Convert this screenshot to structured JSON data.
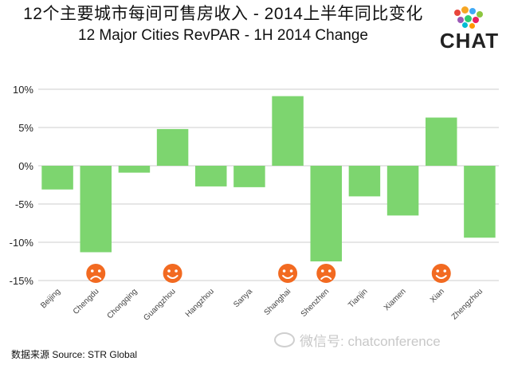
{
  "title": {
    "cn": "12个主要城市每间可售房收入  -  2014上半年同比变化",
    "en": "12 Major Cities RevPAR - 1H 2014 Change"
  },
  "logo": {
    "text": "CHAT"
  },
  "source": "数据来源  Source: STR Global",
  "watermark": "微信号: chatconference",
  "chart_data": {
    "type": "bar",
    "categories": [
      "Beijing",
      "Chengdu",
      "Chongqing",
      "Guangzhou",
      "Hangzhou",
      "Sanya",
      "Shanghai",
      "Shenzhen",
      "Tianjin",
      "Xiamen",
      "Xian",
      "Zhengzhou"
    ],
    "values": [
      -3.1,
      -11.3,
      -0.9,
      4.8,
      -2.7,
      -2.8,
      9.1,
      -12.5,
      -4.0,
      -6.5,
      6.3,
      -9.4
    ],
    "unit": "%",
    "ylim": [
      -15,
      10
    ],
    "yticks": [
      10,
      5,
      0,
      -5,
      -10,
      -15
    ],
    "ytick_labels": [
      "10%",
      "5%",
      "0%",
      "-5%",
      "-10%",
      "-15%"
    ],
    "grid": true,
    "bar_color": "#7dd56f",
    "annotations": [
      {
        "category": "Chengdu",
        "icon": "sad-face-icon"
      },
      {
        "category": "Guangzhou",
        "icon": "smiley-face-icon"
      },
      {
        "category": "Shanghai",
        "icon": "smiley-face-icon"
      },
      {
        "category": "Shenzhen",
        "icon": "sad-face-icon"
      },
      {
        "category": "Xian",
        "icon": "smiley-face-icon"
      }
    ],
    "annotation_color": "#f26a21"
  }
}
